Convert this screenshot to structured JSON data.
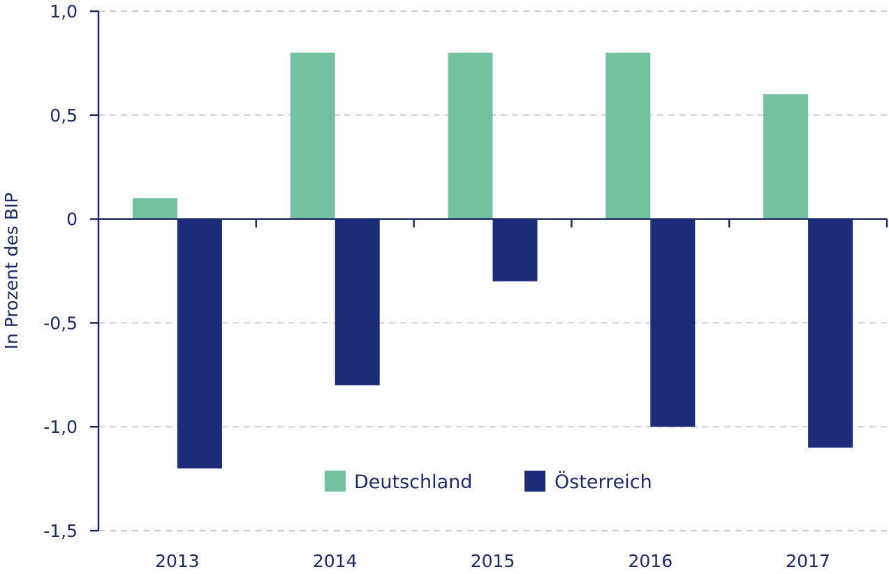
{
  "chart_data": {
    "type": "bar",
    "ylabel": "In Prozent des BIP",
    "xlabel": "",
    "categories": [
      "2013",
      "2014",
      "2015",
      "2016",
      "2017"
    ],
    "series": [
      {
        "name": "Deutschland",
        "color": "#74c19f",
        "values": [
          0.1,
          0.8,
          0.8,
          0.8,
          0.6
        ]
      },
      {
        "name": "Österreich",
        "color": "#1c2c78",
        "values": [
          -1.2,
          -0.8,
          -0.3,
          -1.0,
          -1.1
        ]
      }
    ],
    "ylim": [
      -1.5,
      1.0
    ],
    "yticks": [
      "1,0",
      "0,5",
      "0",
      "-0,5",
      "-1,0",
      "-1,5"
    ],
    "ytick_values": [
      1.0,
      0.5,
      0,
      -0.5,
      -1.0,
      -1.5
    ],
    "grid": true,
    "legend_position": "bottom-center"
  },
  "colors": {
    "axis": "#1b2a6b",
    "grid": "#b9bcd6"
  }
}
